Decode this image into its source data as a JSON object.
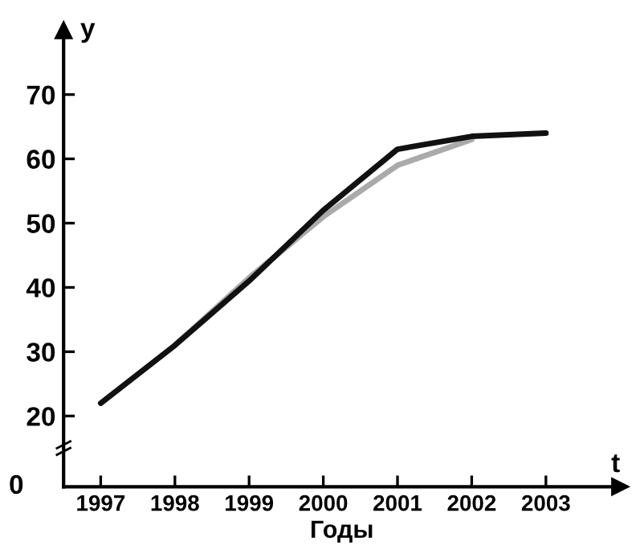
{
  "chart_data": {
    "type": "line",
    "xlabel": "Годы",
    "ylabel": "y",
    "annotations": [
      "t",
      "0"
    ],
    "x": [
      1997,
      1998,
      1999,
      2000,
      2001,
      2002,
      2003
    ],
    "xlim": [
      1996.5,
      2004
    ],
    "ylim": [
      9,
      80
    ],
    "xticks": [
      1997,
      1998,
      1999,
      2000,
      2001,
      2002,
      2003
    ],
    "yticks": [
      20,
      30,
      40,
      50,
      60,
      70
    ],
    "grid": false,
    "marker": "none",
    "line_style": "solid",
    "series": [
      {
        "color": "#aaaaaa",
        "x": [
          1998,
          1999,
          2000,
          2001,
          2002
        ],
        "values": [
          31,
          41.5,
          51,
          59,
          63
        ]
      },
      {
        "color": "#111111",
        "values": [
          22,
          31,
          41,
          52,
          61.5,
          63.5,
          64
        ]
      }
    ]
  }
}
